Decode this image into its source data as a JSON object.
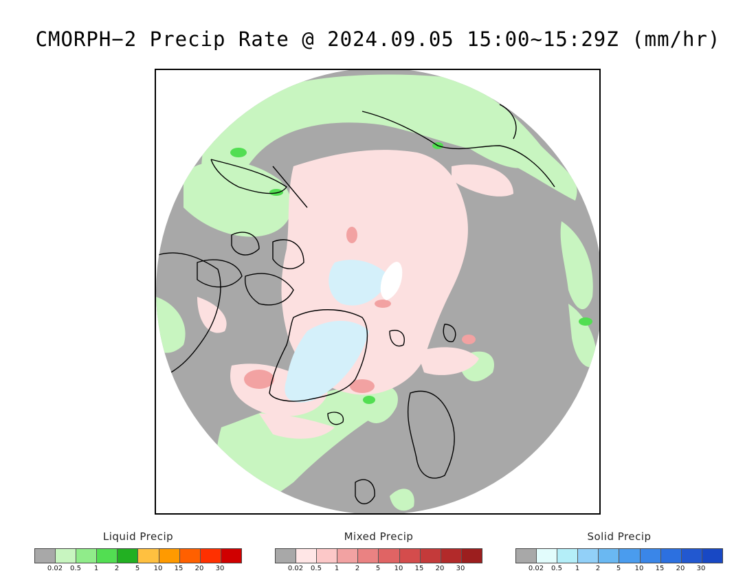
{
  "title": "CMORPH−2 Precip Rate @ 2024.09.05 15:00~15:29Z (mm/hr)",
  "map": {
    "projection": "north-polar-stereographic",
    "background_no_precip_color": "#a8a8a8",
    "coastline_color": "#000000"
  },
  "legends": [
    {
      "title": "Liquid Precip",
      "colors": [
        "#a8a8a8",
        "#c8f5c0",
        "#90ec8a",
        "#52de52",
        "#22b022",
        "#ffc040",
        "#ff9a00",
        "#ff6000",
        "#ff3000",
        "#d00000"
      ],
      "ticks": [
        "0.02",
        "0.5",
        "1",
        "2",
        "5",
        "10",
        "15",
        "20",
        "30"
      ]
    },
    {
      "title": "Mixed Precip",
      "colors": [
        "#a8a8a8",
        "#ffe6e6",
        "#fcc8c8",
        "#f2a2a2",
        "#ea8282",
        "#e06464",
        "#d44c4c",
        "#c43a3a",
        "#b22a2a",
        "#9c1e1e"
      ],
      "ticks": [
        "0.02",
        "0.5",
        "1",
        "2",
        "5",
        "10",
        "15",
        "20",
        "30"
      ]
    },
    {
      "title": "Solid Precip",
      "colors": [
        "#a8a8a8",
        "#e2fcfc",
        "#b4eef8",
        "#92d0f8",
        "#6ab8f2",
        "#4a9cee",
        "#3a86e8",
        "#2c70e0",
        "#2258d0",
        "#1848c4"
      ],
      "ticks": [
        "0.02",
        "0.5",
        "1",
        "2",
        "5",
        "10",
        "15",
        "20",
        "30"
      ]
    }
  ]
}
